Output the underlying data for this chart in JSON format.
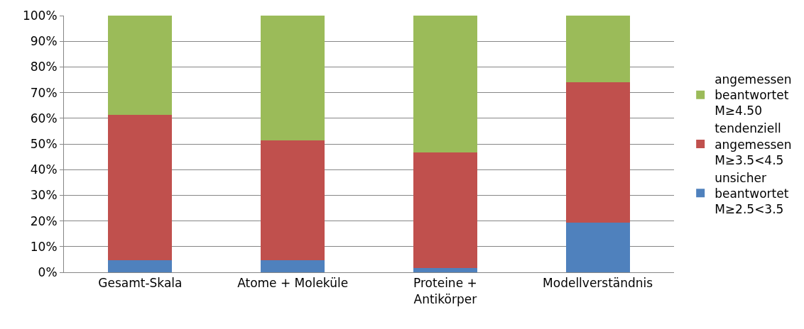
{
  "chart_data": {
    "type": "bar",
    "stacked": true,
    "categories": [
      "Gesamt-Skala",
      "Atome + Moleküle",
      "Proteine +\nAntikörper",
      "Modellverständnis"
    ],
    "series": [
      {
        "name": "unsicher\nbeantwortet\nM≥2.5<3.5",
        "color": "#4f81bd",
        "values": [
          4.8,
          4.8,
          1.7,
          19.3
        ]
      },
      {
        "name": "tendenziell\nangemessen\nM≥3.5<4.5",
        "color": "#c0504d",
        "values": [
          56.4,
          46.7,
          45.0,
          54.7
        ]
      },
      {
        "name": "angemessen\nbeantwortet\nM≥4.50",
        "color": "#9bbb59",
        "values": [
          38.8,
          48.5,
          53.3,
          26.0
        ]
      }
    ],
    "ylim": [
      0,
      100
    ],
    "yticks": [
      {
        "value": 0,
        "label": "0%"
      },
      {
        "value": 10,
        "label": "10%"
      },
      {
        "value": 20,
        "label": "20%"
      },
      {
        "value": 30,
        "label": "30%"
      },
      {
        "value": 40,
        "label": "40%"
      },
      {
        "value": 50,
        "label": "50%"
      },
      {
        "value": 60,
        "label": "60%"
      },
      {
        "value": 70,
        "label": "70%"
      },
      {
        "value": 80,
        "label": "80%"
      },
      {
        "value": 90,
        "label": "90%"
      },
      {
        "value": 100,
        "label": "100%"
      }
    ],
    "grid": "y",
    "legend": "right"
  }
}
